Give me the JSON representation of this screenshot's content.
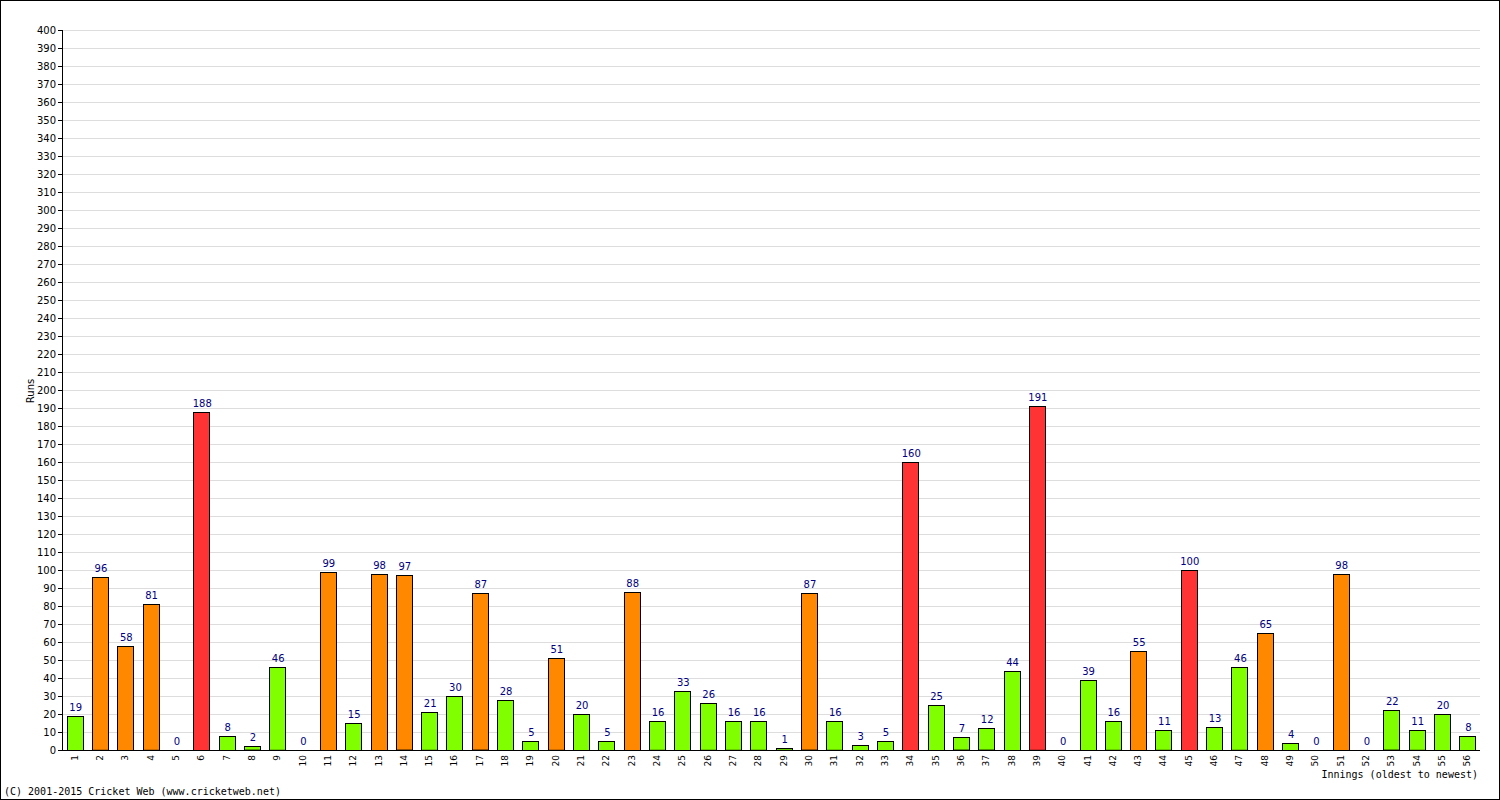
{
  "chart_data": {
    "type": "bar",
    "x_label": "Innings (oldest to newest)",
    "y_label": "Runs",
    "annotations": [
      "(C) 2001-2015 Cricket Web (www.cricketweb.net)"
    ],
    "categories": [
      "1",
      "2",
      "3",
      "4",
      "5",
      "6",
      "7",
      "8",
      "9",
      "10",
      "11",
      "12",
      "13",
      "14",
      "15",
      "16",
      "17",
      "18",
      "19",
      "20",
      "21",
      "22",
      "23",
      "24",
      "25",
      "26",
      "27",
      "28",
      "29",
      "30",
      "31",
      "32",
      "33",
      "34",
      "35",
      "36",
      "37",
      "38",
      "39",
      "40",
      "41",
      "42",
      "43",
      "44",
      "45",
      "46",
      "47",
      "48",
      "49",
      "50",
      "51",
      "52",
      "53",
      "54",
      "55",
      "56"
    ],
    "values": [
      19,
      96,
      58,
      81,
      0,
      188,
      8,
      2,
      46,
      0,
      99,
      15,
      98,
      97,
      21,
      30,
      87,
      28,
      5,
      51,
      20,
      5,
      88,
      16,
      33,
      26,
      16,
      16,
      1,
      87,
      16,
      3,
      5,
      160,
      25,
      7,
      12,
      44,
      191,
      0,
      39,
      16,
      55,
      11,
      100,
      13,
      46,
      65,
      4,
      0,
      98,
      0,
      22,
      11,
      20,
      8
    ],
    "colors": [
      "#80ff00",
      "#ff8800",
      "#ff8800",
      "#ff8800",
      "#80ff00",
      "#ff3333",
      "#80ff00",
      "#80ff00",
      "#80ff00",
      "#80ff00",
      "#ff8800",
      "#80ff00",
      "#ff8800",
      "#ff8800",
      "#80ff00",
      "#80ff00",
      "#ff8800",
      "#80ff00",
      "#80ff00",
      "#ff8800",
      "#80ff00",
      "#80ff00",
      "#ff8800",
      "#80ff00",
      "#80ff00",
      "#80ff00",
      "#80ff00",
      "#80ff00",
      "#80ff00",
      "#ff8800",
      "#80ff00",
      "#80ff00",
      "#80ff00",
      "#ff3333",
      "#80ff00",
      "#80ff00",
      "#80ff00",
      "#80ff00",
      "#ff3333",
      "#80ff00",
      "#80ff00",
      "#80ff00",
      "#ff8800",
      "#80ff00",
      "#ff3333",
      "#80ff00",
      "#80ff00",
      "#ff8800",
      "#80ff00",
      "#80ff00",
      "#ff8800",
      "#80ff00",
      "#80ff00",
      "#80ff00",
      "#80ff00",
      "#80ff00"
    ],
    "ylim": [
      0,
      400
    ],
    "yticks": [
      0,
      10,
      20,
      30,
      40,
      50,
      60,
      70,
      80,
      90,
      100,
      110,
      120,
      130,
      140,
      150,
      160,
      170,
      180,
      190,
      200,
      210,
      220,
      230,
      240,
      250,
      260,
      270,
      280,
      290,
      300,
      310,
      320,
      330,
      340,
      350,
      360,
      370,
      380,
      390,
      400
    ],
    "grid": true,
    "data_labels": true
  }
}
